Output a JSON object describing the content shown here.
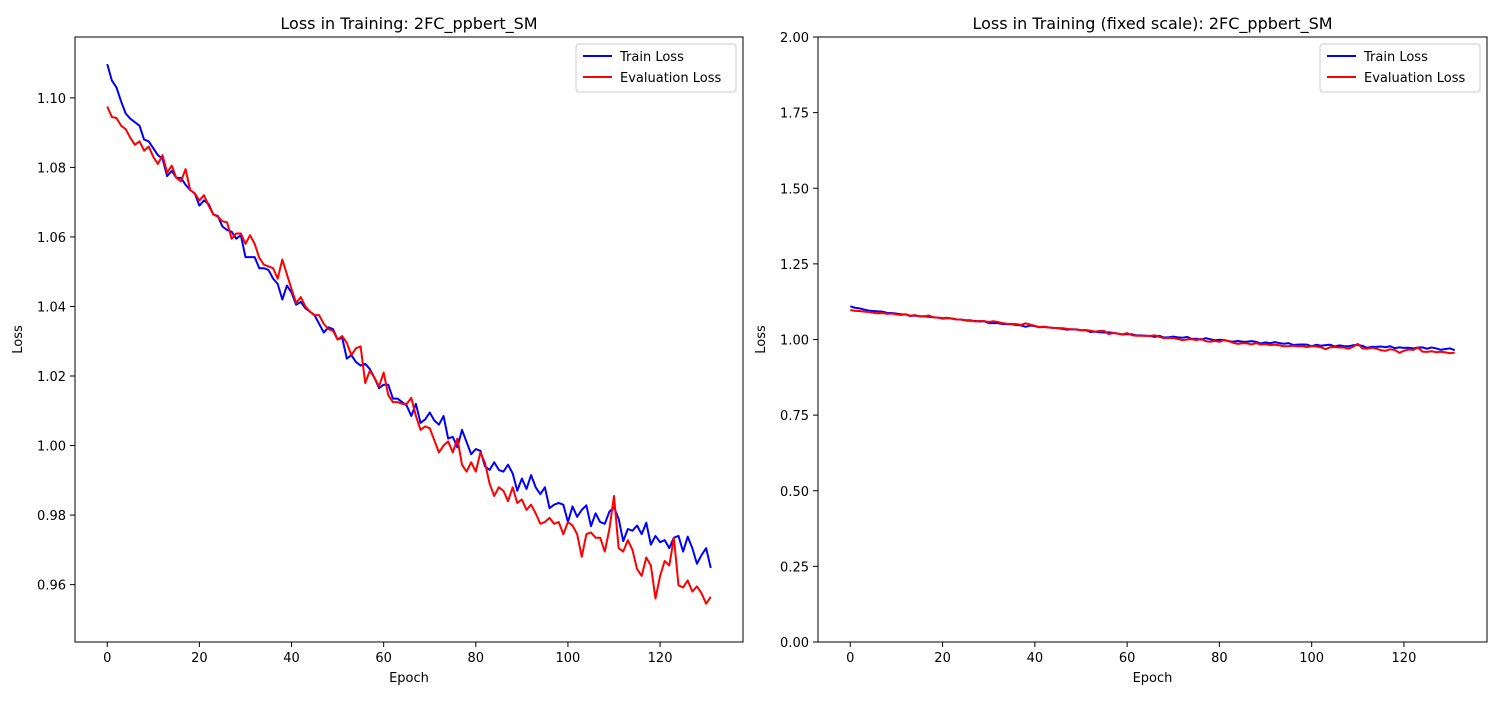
{
  "chart_data": [
    {
      "type": "line",
      "title": "Loss in Training: 2FC_ppbert_SM",
      "xlabel": "Epoch",
      "ylabel": "Loss",
      "xlim": [
        -7,
        138
      ],
      "ylim": [
        0.9435,
        1.1175
      ],
      "xticks": [
        0,
        20,
        40,
        60,
        80,
        100,
        120
      ],
      "yticks": [
        0.96,
        0.98,
        1.0,
        1.02,
        1.04,
        1.06,
        1.08,
        1.1
      ],
      "ytick_labels": [
        "0.96",
        "0.98",
        "1.00",
        "1.02",
        "1.04",
        "1.06",
        "1.08",
        "1.10"
      ],
      "grid": false,
      "legend_position": "top-right",
      "x": [
        0,
        1,
        2,
        3,
        4,
        5,
        6,
        7,
        8,
        9,
        10,
        11,
        12,
        13,
        14,
        15,
        16,
        17,
        18,
        19,
        20,
        21,
        22,
        23,
        24,
        25,
        26,
        27,
        28,
        29,
        30,
        31,
        32,
        33,
        34,
        35,
        36,
        37,
        38,
        39,
        40,
        41,
        42,
        43,
        44,
        45,
        46,
        47,
        48,
        49,
        50,
        51,
        52,
        53,
        54,
        55,
        56,
        57,
        58,
        59,
        60,
        61,
        62,
        63,
        64,
        65,
        66,
        67,
        68,
        69,
        70,
        71,
        72,
        73,
        74,
        75,
        76,
        77,
        78,
        79,
        80,
        81,
        82,
        83,
        84,
        85,
        86,
        87,
        88,
        89,
        90,
        91,
        92,
        93,
        94,
        95,
        96,
        97,
        98,
        99,
        100,
        101,
        102,
        103,
        104,
        105,
        106,
        107,
        108,
        109,
        110,
        111,
        112,
        113,
        114,
        115,
        116,
        117,
        118,
        119,
        120,
        121,
        122,
        123,
        124,
        125,
        126,
        127,
        128,
        129,
        130,
        131
      ],
      "series": [
        {
          "name": "Train Loss",
          "color": "#0000ff",
          "values": [
            1.1097,
            1.105,
            1.103,
            1.099,
            1.0955,
            1.094,
            1.093,
            1.092,
            1.088,
            1.0875,
            1.0855,
            1.0835,
            1.0825,
            1.0775,
            1.079,
            1.077,
            1.077,
            1.075,
            1.0735,
            1.0725,
            1.069,
            1.0705,
            1.0695,
            1.0665,
            1.066,
            1.063,
            1.062,
            1.0615,
            1.0595,
            1.0605,
            1.0542,
            1.0542,
            1.0542,
            1.051,
            1.051,
            1.0505,
            1.048,
            1.0465,
            1.042,
            1.046,
            1.044,
            1.0405,
            1.0413,
            1.0395,
            1.0385,
            1.0375,
            1.035,
            1.0325,
            1.034,
            1.0335,
            1.0305,
            1.031,
            1.025,
            1.026,
            1.024,
            1.023,
            1.0235,
            1.022,
            1.0195,
            1.0165,
            1.0175,
            1.0175,
            1.0135,
            1.0135,
            1.0125,
            1.0115,
            1.0085,
            1.012,
            1.0065,
            1.0075,
            1.0095,
            1.0072,
            1.006,
            1.0085,
            1.002,
            1.0025,
            0.9995,
            1.0045,
            1.001,
            0.9975,
            0.999,
            0.9985,
            0.994,
            0.993,
            0.9952,
            0.993,
            0.9925,
            0.9945,
            0.992,
            0.987,
            0.9905,
            0.9875,
            0.9915,
            0.988,
            0.986,
            0.988,
            0.982,
            0.983,
            0.9835,
            0.983,
            0.978,
            0.9825,
            0.9795,
            0.9815,
            0.9828,
            0.9768,
            0.9805,
            0.978,
            0.9775,
            0.981,
            0.9822,
            0.979,
            0.9725,
            0.976,
            0.9755,
            0.977,
            0.9745,
            0.9778,
            0.9715,
            0.974,
            0.9722,
            0.9728,
            0.9705,
            0.9735,
            0.974,
            0.9695,
            0.9738,
            0.9705,
            0.966,
            0.9685,
            0.9705,
            0.9648
          ]
        },
        {
          "name": "Evaluation Loss",
          "color": "#ff0000",
          "values": [
            1.0975,
            1.0945,
            1.0942,
            1.092,
            1.091,
            1.0885,
            1.0865,
            1.0875,
            1.0848,
            1.086,
            1.083,
            1.081,
            1.0835,
            1.0785,
            1.0805,
            1.077,
            1.076,
            1.0795,
            1.0735,
            1.0725,
            1.0705,
            1.072,
            1.069,
            1.0665,
            1.0658,
            1.0645,
            1.0642,
            1.0595,
            1.061,
            1.061,
            1.058,
            1.0605,
            1.058,
            1.054,
            1.052,
            1.0515,
            1.051,
            1.048,
            1.0535,
            1.0492,
            1.045,
            1.041,
            1.0427,
            1.04,
            1.0385,
            1.0375,
            1.0375,
            1.035,
            1.0335,
            1.033,
            1.0305,
            1.0315,
            1.0295,
            1.026,
            1.028,
            1.0285,
            1.018,
            1.0215,
            1.0195,
            1.017,
            1.021,
            1.0145,
            1.0125,
            1.0125,
            1.012,
            1.012,
            1.0137,
            1.0085,
            1.0045,
            1.0055,
            1.005,
            1.0015,
            0.998,
            1.0,
            1.0012,
            0.998,
            1.002,
            0.9945,
            0.9925,
            0.9952,
            0.9925,
            0.998,
            0.995,
            0.989,
            0.9855,
            0.988,
            0.987,
            0.984,
            0.988,
            0.9835,
            0.9845,
            0.9815,
            0.983,
            0.9805,
            0.9775,
            0.978,
            0.9792,
            0.9775,
            0.978,
            0.9745,
            0.978,
            0.977,
            0.9745,
            0.968,
            0.9745,
            0.975,
            0.9735,
            0.9735,
            0.9695,
            0.976,
            0.9855,
            0.9705,
            0.9695,
            0.9728,
            0.97,
            0.9645,
            0.9625,
            0.9678,
            0.9655,
            0.956,
            0.9625,
            0.9668,
            0.9655,
            0.9735,
            0.9598,
            0.9592,
            0.9612,
            0.958,
            0.9595,
            0.9575,
            0.9545,
            0.9565
          ]
        }
      ]
    },
    {
      "type": "line",
      "title": "Loss in Training (fixed scale): 2FC_ppbert_SM",
      "xlabel": "Epoch",
      "ylabel": "Loss",
      "xlim": [
        -7,
        138
      ],
      "ylim": [
        0,
        2
      ],
      "xticks": [
        0,
        20,
        40,
        60,
        80,
        100,
        120
      ],
      "yticks": [
        0,
        0.25,
        0.5,
        0.75,
        1.0,
        1.25,
        1.5,
        1.75,
        2.0
      ],
      "ytick_labels": [
        "0.00",
        "0.25",
        "0.50",
        "0.75",
        "1.00",
        "1.25",
        "1.50",
        "1.75",
        "2.00"
      ],
      "grid": false,
      "legend_position": "top-right",
      "series_source": "same Train Loss and Evaluation Loss values as the first chart"
    }
  ]
}
